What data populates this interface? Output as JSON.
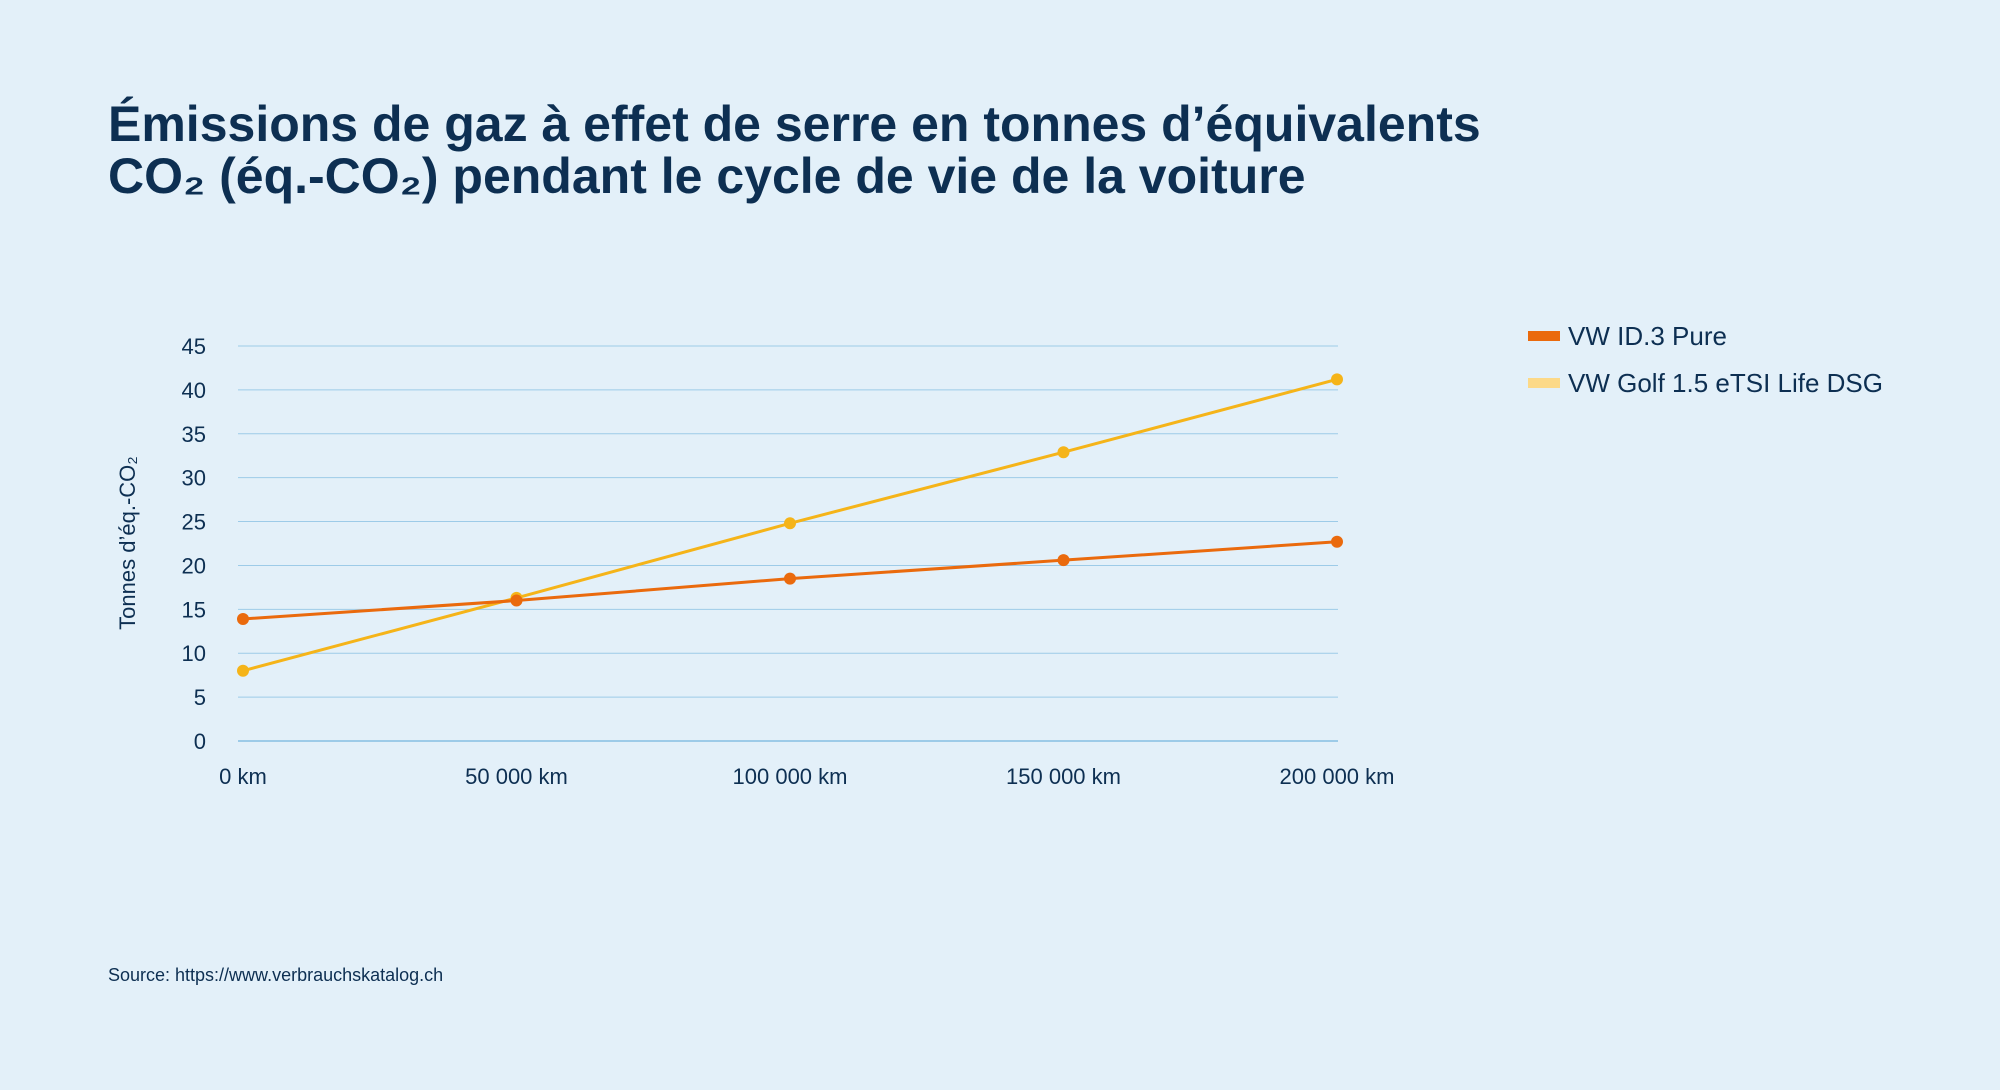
{
  "title_line1": "Émissions de gaz à effet de serre en tonnes d’équivalents",
  "title_line2": "CO₂ (éq.-CO₂) pendant le cycle de vie de la voiture",
  "source": "Source: https://www.verbrauchskatalog.ch",
  "colors": {
    "background": "#e3f0f9",
    "grid": "#9dcbe8",
    "id3": "#ea6a0d",
    "golf": "#f5b419",
    "golf_legend": "#fcd988",
    "text": "#0d2f52"
  },
  "chart_data": {
    "type": "line",
    "title": "Émissions de gaz à effet de serre en tonnes d’équivalents CO₂ (éq.-CO₂) pendant le cycle de vie de la voiture",
    "xlabel": "",
    "ylabel": "Tonnes d’éq.-CO₂",
    "categories": [
      "0 km",
      "50 000 km",
      "100 000 km",
      "150 000 km",
      "200 000 km"
    ],
    "x": [
      0,
      50000,
      100000,
      150000,
      200000
    ],
    "ylim": [
      0,
      45
    ],
    "yticks": [
      0,
      5,
      10,
      15,
      20,
      25,
      30,
      35,
      40,
      45
    ],
    "grid": true,
    "legend_position": "top-right",
    "series": [
      {
        "name": "VW ID.3 Pure",
        "color": "#ea6a0d",
        "legend_color": "#ea6a0d",
        "values": [
          13.9,
          16.0,
          18.5,
          20.6,
          22.7
        ]
      },
      {
        "name": "VW Golf 1.5 eTSI Life DSG",
        "color": "#f5b419",
        "legend_color": "#fcd988",
        "values": [
          8.0,
          16.3,
          24.8,
          32.9,
          41.2
        ]
      }
    ]
  }
}
